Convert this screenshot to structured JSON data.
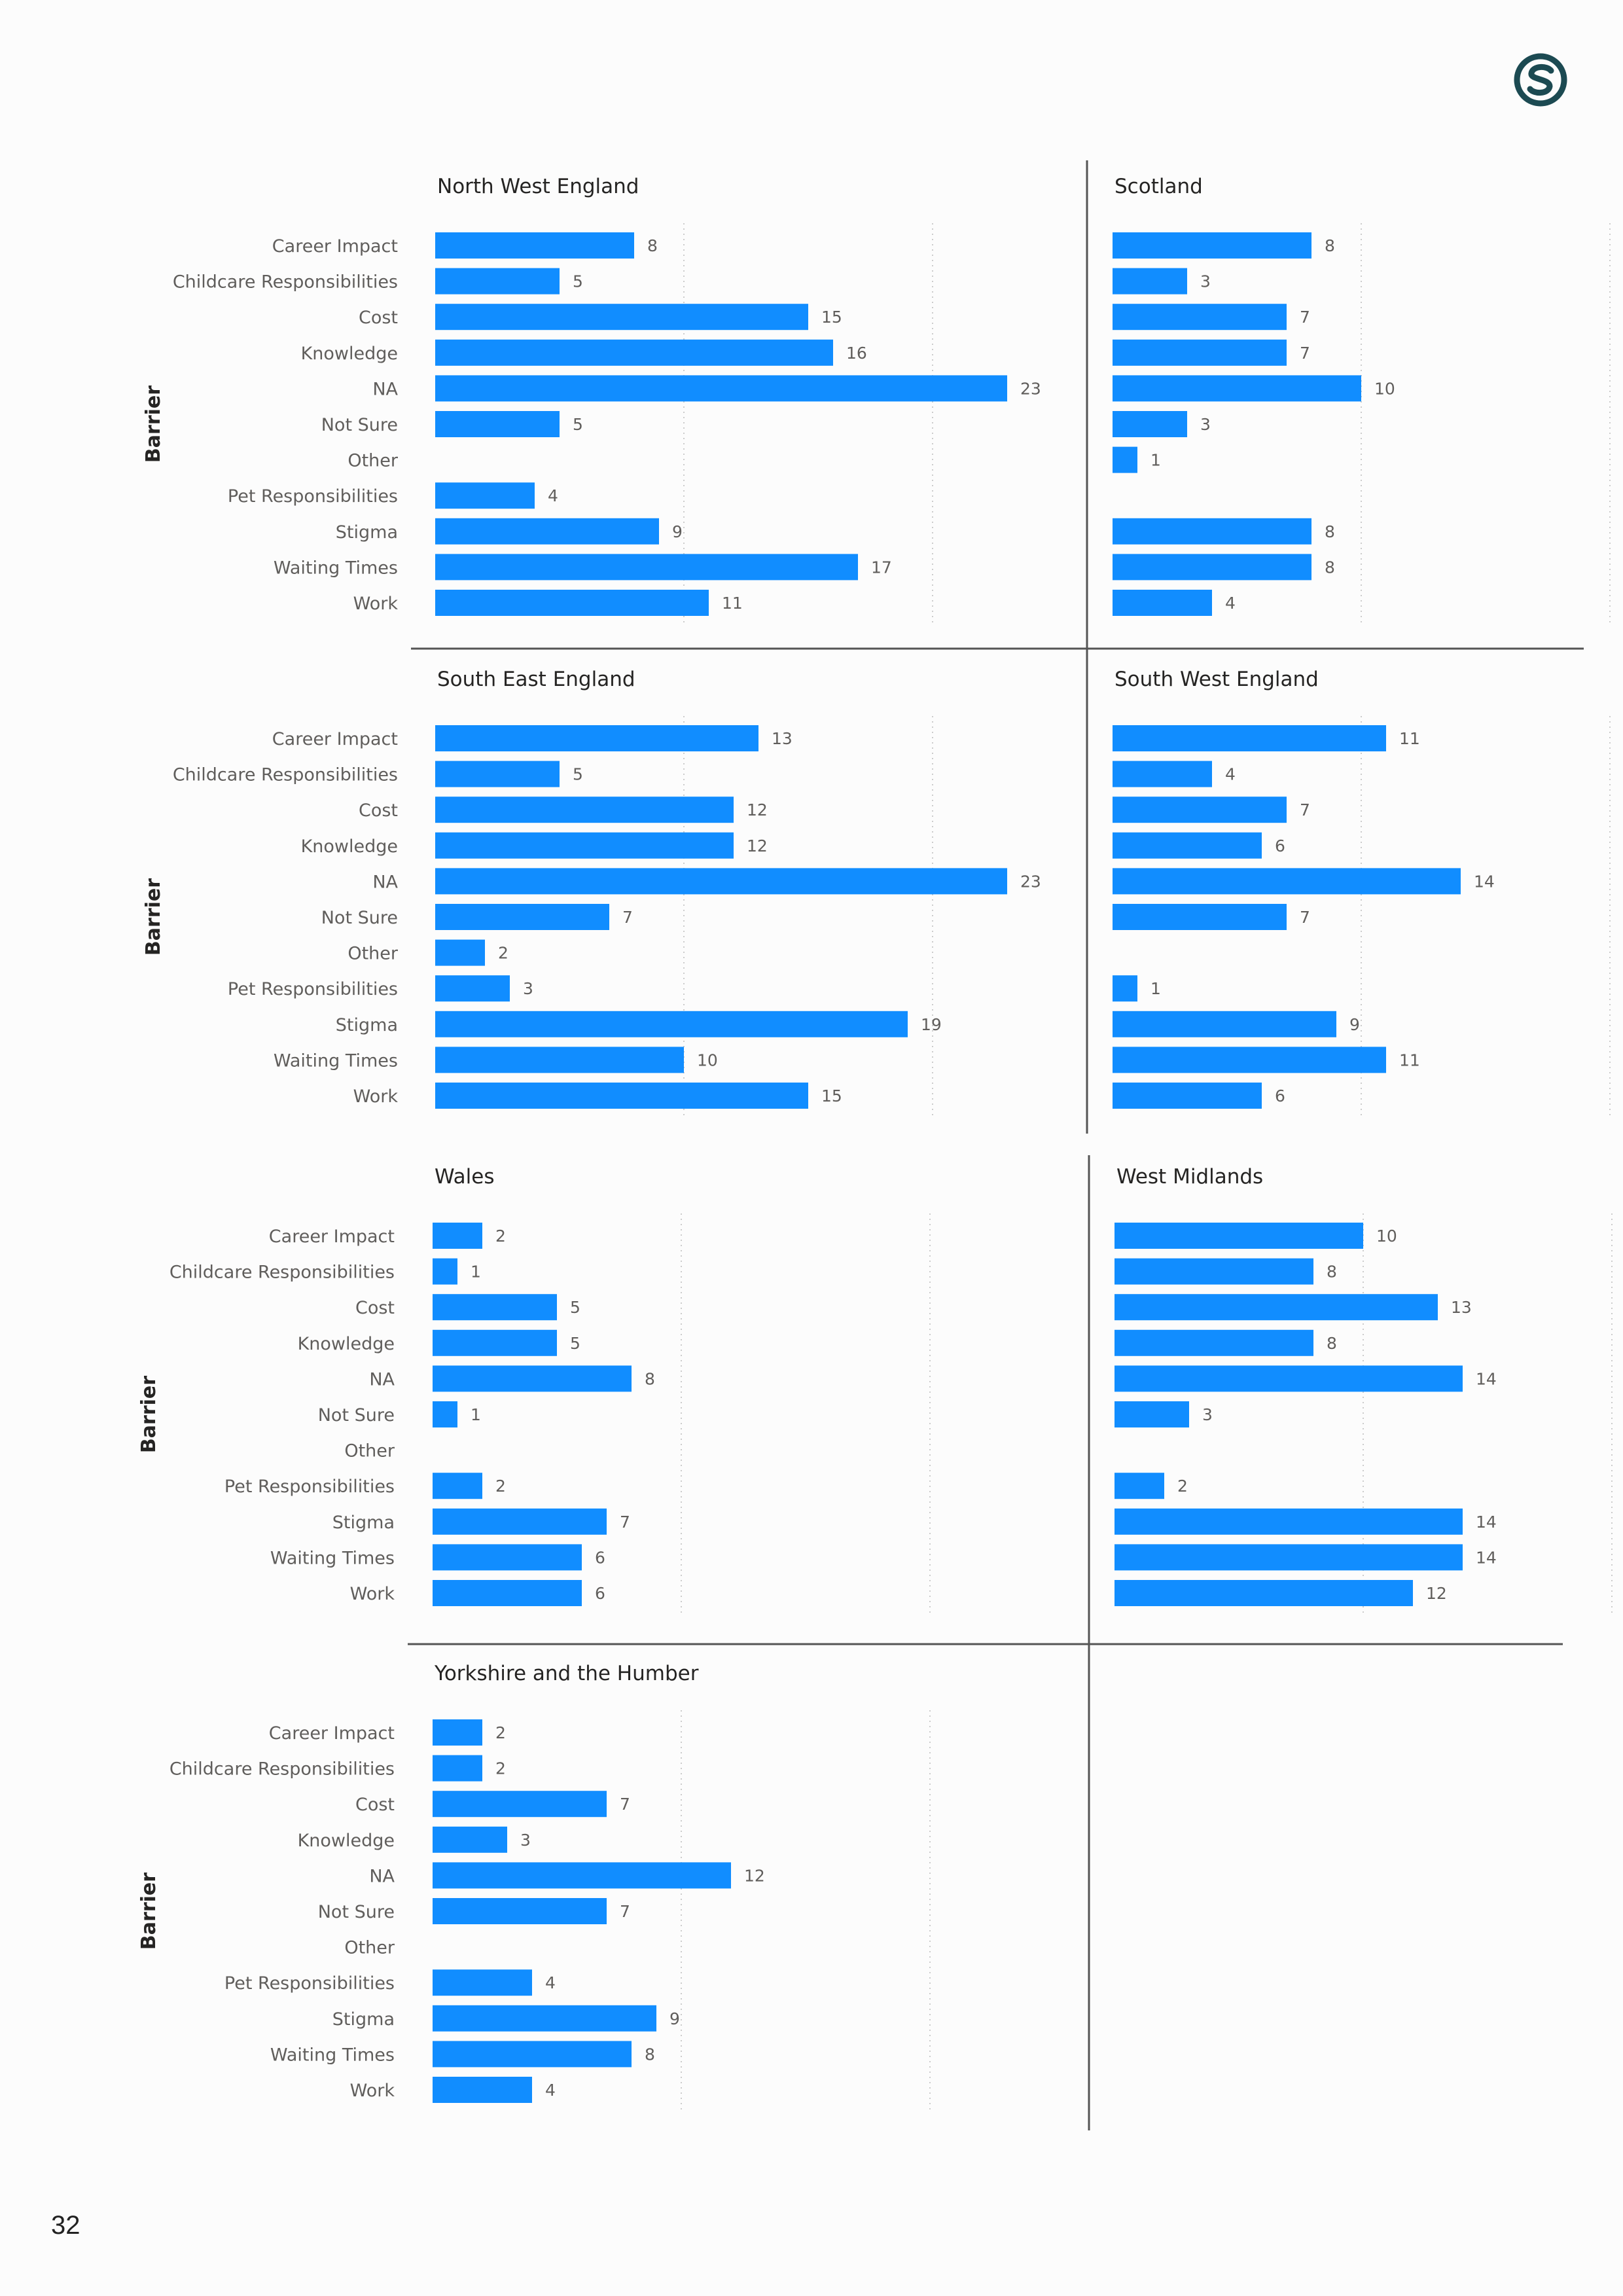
{
  "page": {
    "number": "32"
  },
  "logo": {
    "icon": "circular-s-brand-icon",
    "color": "#1c4a52"
  },
  "colors": {
    "bar": "#118dff",
    "text": "#252423",
    "label": "#605e5c",
    "grid": "#cccccc",
    "divider": "#555555"
  },
  "chart_data": [
    {
      "type": "bar",
      "orientation": "horizontal",
      "title": "North West England",
      "ylabel": "Barrier",
      "categories": [
        "Career Impact",
        "Childcare Responsibilities",
        "Cost",
        "Knowledge",
        "NA",
        "Not Sure",
        "Other",
        "Pet Responsibilities",
        "Stigma",
        "Waiting Times",
        "Work"
      ],
      "values": [
        8,
        5,
        15,
        16,
        23,
        5,
        null,
        4,
        9,
        17,
        11
      ],
      "xlim": [
        0,
        30
      ],
      "grid": true
    },
    {
      "type": "bar",
      "orientation": "horizontal",
      "title": "Scotland",
      "ylabel": "",
      "categories": [
        "Career Impact",
        "Childcare Responsibilities",
        "Cost",
        "Knowledge",
        "NA",
        "Not Sure",
        "Other",
        "Pet Responsibilities",
        "Stigma",
        "Waiting Times",
        "Work"
      ],
      "values": [
        8,
        3,
        7,
        7,
        10,
        3,
        1,
        null,
        8,
        8,
        4
      ],
      "xlim": [
        0,
        30
      ],
      "grid": true
    },
    {
      "type": "bar",
      "orientation": "horizontal",
      "title": "South East England",
      "ylabel": "Barrier",
      "categories": [
        "Career Impact",
        "Childcare Responsibilities",
        "Cost",
        "Knowledge",
        "NA",
        "Not Sure",
        "Other",
        "Pet Responsibilities",
        "Stigma",
        "Waiting Times",
        "Work"
      ],
      "values": [
        13,
        5,
        12,
        12,
        23,
        7,
        2,
        3,
        19,
        10,
        15
      ],
      "xlim": [
        0,
        30
      ],
      "grid": true
    },
    {
      "type": "bar",
      "orientation": "horizontal",
      "title": "South West England",
      "ylabel": "",
      "categories": [
        "Career Impact",
        "Childcare Responsibilities",
        "Cost",
        "Knowledge",
        "NA",
        "Not Sure",
        "Other",
        "Pet Responsibilities",
        "Stigma",
        "Waiting Times",
        "Work"
      ],
      "values": [
        11,
        4,
        7,
        6,
        14,
        7,
        null,
        1,
        9,
        11,
        6
      ],
      "xlim": [
        0,
        30
      ],
      "grid": true
    },
    {
      "type": "bar",
      "orientation": "horizontal",
      "title": "Wales",
      "ylabel": "Barrier",
      "categories": [
        "Career Impact",
        "Childcare Responsibilities",
        "Cost",
        "Knowledge",
        "NA",
        "Not Sure",
        "Other",
        "Pet Responsibilities",
        "Stigma",
        "Waiting Times",
        "Work"
      ],
      "values": [
        2,
        1,
        5,
        5,
        8,
        1,
        null,
        2,
        7,
        6,
        6
      ],
      "xlim": [
        0,
        30
      ],
      "grid": true
    },
    {
      "type": "bar",
      "orientation": "horizontal",
      "title": "West Midlands",
      "ylabel": "",
      "categories": [
        "Career Impact",
        "Childcare Responsibilities",
        "Cost",
        "Knowledge",
        "NA",
        "Not Sure",
        "Other",
        "Pet Responsibilities",
        "Stigma",
        "Waiting Times",
        "Work"
      ],
      "values": [
        10,
        8,
        13,
        8,
        14,
        3,
        null,
        2,
        14,
        14,
        12
      ],
      "xlim": [
        0,
        30
      ],
      "grid": true
    },
    {
      "type": "bar",
      "orientation": "horizontal",
      "title": "Yorkshire and the Humber",
      "ylabel": "Barrier",
      "categories": [
        "Career Impact",
        "Childcare Responsibilities",
        "Cost",
        "Knowledge",
        "NA",
        "Not Sure",
        "Other",
        "Pet Responsibilities",
        "Stigma",
        "Waiting Times",
        "Work"
      ],
      "values": [
        2,
        2,
        7,
        3,
        12,
        7,
        null,
        4,
        9,
        8,
        4
      ],
      "xlim": [
        0,
        30
      ],
      "grid": true
    }
  ]
}
